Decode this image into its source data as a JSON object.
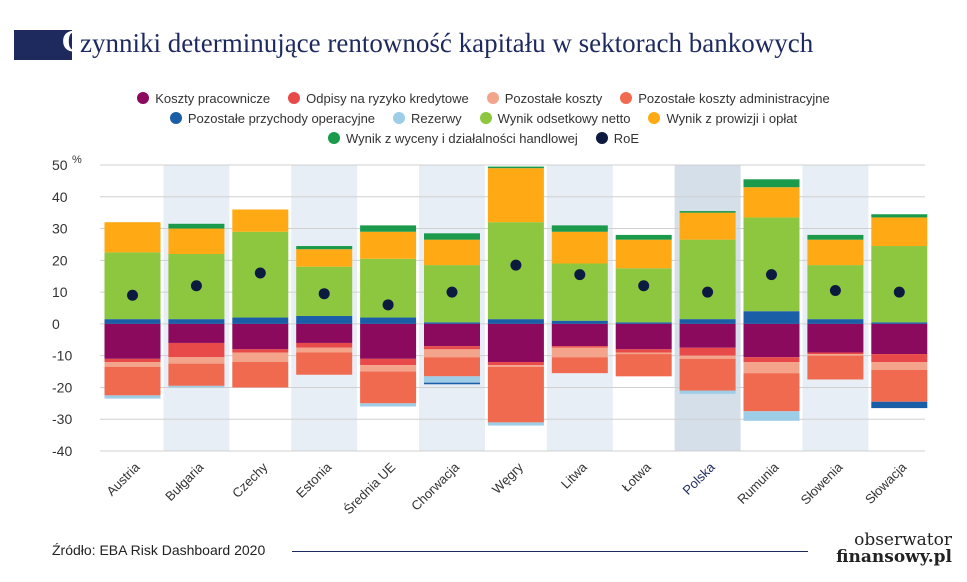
{
  "title": {
    "initial": "C",
    "rest": "zynniki determinujące rentowność kapitału w sektorach bankowych"
  },
  "source": "Źródło: EBA Risk Dashboard 2020",
  "logo": {
    "line1": "obserwator",
    "line2": "finansowy.pl"
  },
  "colors": {
    "koszty_pracownicze": "#8b0a5e",
    "odpisy": "#e84a4a",
    "pozostale_koszty": "#f4a48b",
    "pozostale_koszty_adm": "#f06a50",
    "pozostale_przychody": "#1b5ea8",
    "rezerwy": "#9ecde8",
    "wynik_odsetkowy": "#8dc63f",
    "wynik_prowizji": "#ffaa14",
    "wynik_wyceny": "#1a9a4a",
    "roe": "#0d1a40",
    "band": "#e8eef5",
    "highlight_band": "#d5dfea",
    "grid": "#d0d0d0",
    "highlight_label": "#1e2a5e"
  },
  "chart_data": {
    "type": "bar",
    "stacked": true,
    "ylim": [
      -40,
      50
    ],
    "yticks": [
      50,
      40,
      30,
      20,
      10,
      0,
      -10,
      -20,
      -30,
      -40
    ],
    "yunit": "%",
    "grid": true,
    "legend_position": "top",
    "highlight_category": "Polska",
    "categories": [
      "Austria",
      "Bułgaria",
      "Czechy",
      "Estonia",
      "Średnia UE",
      "Chorwacja",
      "Węgry",
      "Litwa",
      "Łotwa",
      "Polska",
      "Rumunia",
      "Słowenia",
      "Słowacja"
    ],
    "series": [
      {
        "key": "pozostale_przychody",
        "name": "Pozostałe przychody operacyjne",
        "values": [
          1.5,
          1.5,
          2,
          2.5,
          2,
          0.5,
          1.5,
          1,
          0.5,
          1.5,
          4,
          1.5,
          0.5
        ]
      },
      {
        "key": "wynik_odsetkowy",
        "name": "Wynik odsetkowy netto",
        "values": [
          21,
          20.5,
          27,
          15.5,
          18.5,
          18,
          30.5,
          18,
          17,
          25,
          29.5,
          17,
          24
        ]
      },
      {
        "key": "wynik_prowizji",
        "name": "Wynik z prowizji i opłat",
        "values": [
          9.5,
          8,
          7,
          5.5,
          8.5,
          8,
          17,
          10,
          9,
          8.5,
          9.5,
          8,
          9
        ]
      },
      {
        "key": "wynik_wyceny",
        "name": "Wynik z wyceny i działalności handlowej",
        "values": [
          0,
          1.5,
          0,
          1,
          2,
          2,
          0.5,
          2,
          1.5,
          0.5,
          2.5,
          1.5,
          1
        ]
      },
      {
        "key": "koszty_pracownicze",
        "name": "Koszty pracownicze",
        "values": [
          -11,
          -6,
          -8,
          -6,
          -11,
          -7,
          -12,
          -7,
          -8,
          -7.5,
          -10.5,
          -9,
          -9.5
        ]
      },
      {
        "key": "odpisy",
        "name": "Odpisy na ryzyko kredytowe",
        "values": [
          -1,
          -4.5,
          -1,
          -1.5,
          -2,
          -1,
          -1,
          -0.5,
          -1,
          -2.5,
          -1.5,
          -0.5,
          -2.5
        ]
      },
      {
        "key": "pozostale_koszty",
        "name": "Pozostałe koszty",
        "values": [
          -1.5,
          -2,
          -3,
          -1.5,
          -2,
          -2.5,
          -0.5,
          -3,
          -0.5,
          -1,
          -3.5,
          -0.5,
          -2.5
        ]
      },
      {
        "key": "pozostale_koszty_adm",
        "name": "Pozostałe koszty administracyjne",
        "values": [
          -9,
          -7,
          -8,
          -7,
          -10,
          -6,
          -17.5,
          -5,
          -7,
          -10,
          -12,
          -7.5,
          -10
        ]
      },
      {
        "key": "rezerwy",
        "name": "Rezerwy",
        "values": [
          -1,
          -0.5,
          0,
          0,
          -1,
          -2,
          -1,
          0,
          0,
          -1,
          -3,
          0,
          0
        ]
      },
      {
        "key": "rezerwy_dark",
        "name": "",
        "values": [
          0,
          0,
          0,
          0,
          0,
          -0.5,
          0,
          0,
          0,
          0,
          0,
          0,
          -2
        ]
      }
    ],
    "roe": {
      "name": "RoE",
      "values": [
        9,
        12,
        16,
        9.5,
        6,
        10,
        18.5,
        15.5,
        12,
        10,
        15.5,
        10.5,
        10
      ]
    }
  },
  "legend_rows": [
    [
      {
        "key": "koszty_pracownicze",
        "label": "Koszty pracownicze"
      },
      {
        "key": "odpisy",
        "label": "Odpisy na ryzyko kredytowe"
      },
      {
        "key": "pozostale_koszty",
        "label": "Pozostałe koszty"
      },
      {
        "key": "pozostale_koszty_adm",
        "label": "Pozostałe koszty administracyjne"
      }
    ],
    [
      {
        "key": "pozostale_przychody",
        "label": "Pozostałe przychody operacyjne"
      },
      {
        "key": "rezerwy",
        "label": "Rezerwy"
      },
      {
        "key": "wynik_odsetkowy",
        "label": "Wynik odsetkowy netto"
      },
      {
        "key": "wynik_prowizji",
        "label": "Wynik z prowizji i opłat"
      }
    ],
    [
      {
        "key": "wynik_wyceny",
        "label": "Wynik z wyceny i działalności handlowej"
      },
      {
        "key": "roe",
        "label": "RoE"
      }
    ]
  ]
}
